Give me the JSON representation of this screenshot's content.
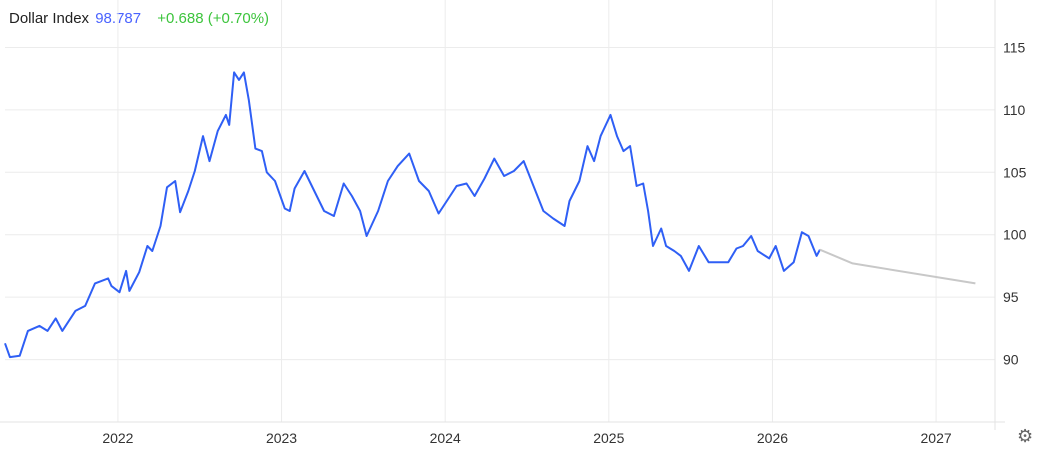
{
  "header": {
    "name": "Dollar Index",
    "price": "98.787",
    "change": "+0.688 (+0.70%)"
  },
  "colors": {
    "line": "#2f5ff5",
    "forecast": "#c8c8c8",
    "price": "#4a63ff",
    "change": "#3cc43c",
    "grid": "#ececec"
  },
  "settings_icon": "gear-icon",
  "chart_data": {
    "type": "line",
    "title": "Dollar Index",
    "xlim": [
      2021.31,
      2027.36
    ],
    "ylim": [
      85,
      118.8
    ],
    "grid": true,
    "y_axis_side": "right",
    "x_ticks": [
      "2022",
      "2023",
      "2024",
      "2025",
      "2026",
      "2027"
    ],
    "y_ticks": [
      "90",
      "95",
      "100",
      "105",
      "110",
      "115"
    ],
    "series": [
      {
        "kind": "actual",
        "points": [
          [
            2021.31,
            91.3
          ],
          [
            2021.34,
            90.2
          ],
          [
            2021.4,
            90.3
          ],
          [
            2021.45,
            92.3
          ],
          [
            2021.52,
            92.7
          ],
          [
            2021.57,
            92.3
          ],
          [
            2021.62,
            93.3
          ],
          [
            2021.66,
            92.3
          ],
          [
            2021.74,
            93.9
          ],
          [
            2021.8,
            94.3
          ],
          [
            2021.86,
            96.1
          ],
          [
            2021.94,
            96.5
          ],
          [
            2021.96,
            95.9
          ],
          [
            2022.01,
            95.4
          ],
          [
            2022.05,
            97.1
          ],
          [
            2022.07,
            95.5
          ],
          [
            2022.13,
            97.0
          ],
          [
            2022.18,
            99.1
          ],
          [
            2022.21,
            98.7
          ],
          [
            2022.26,
            100.7
          ],
          [
            2022.3,
            103.8
          ],
          [
            2022.35,
            104.3
          ],
          [
            2022.38,
            101.8
          ],
          [
            2022.43,
            103.5
          ],
          [
            2022.47,
            105.1
          ],
          [
            2022.52,
            107.9
          ],
          [
            2022.56,
            105.9
          ],
          [
            2022.61,
            108.3
          ],
          [
            2022.66,
            109.6
          ],
          [
            2022.68,
            108.8
          ],
          [
            2022.71,
            113.0
          ],
          [
            2022.74,
            112.4
          ],
          [
            2022.77,
            113.0
          ],
          [
            2022.8,
            110.8
          ],
          [
            2022.84,
            106.9
          ],
          [
            2022.88,
            106.7
          ],
          [
            2022.91,
            105.0
          ],
          [
            2022.96,
            104.3
          ],
          [
            2023.02,
            102.1
          ],
          [
            2023.05,
            101.9
          ],
          [
            2023.08,
            103.7
          ],
          [
            2023.14,
            105.1
          ],
          [
            2023.2,
            103.5
          ],
          [
            2023.26,
            101.9
          ],
          [
            2023.32,
            101.5
          ],
          [
            2023.38,
            104.1
          ],
          [
            2023.43,
            103.1
          ],
          [
            2023.48,
            101.9
          ],
          [
            2023.52,
            99.9
          ],
          [
            2023.59,
            101.9
          ],
          [
            2023.65,
            104.3
          ],
          [
            2023.71,
            105.5
          ],
          [
            2023.78,
            106.5
          ],
          [
            2023.84,
            104.3
          ],
          [
            2023.9,
            103.5
          ],
          [
            2023.96,
            101.7
          ],
          [
            2024.01,
            102.7
          ],
          [
            2024.07,
            103.9
          ],
          [
            2024.13,
            104.1
          ],
          [
            2024.18,
            103.1
          ],
          [
            2024.24,
            104.5
          ],
          [
            2024.3,
            106.1
          ],
          [
            2024.36,
            104.7
          ],
          [
            2024.42,
            105.1
          ],
          [
            2024.48,
            105.9
          ],
          [
            2024.54,
            103.9
          ],
          [
            2024.6,
            101.9
          ],
          [
            2024.66,
            101.3
          ],
          [
            2024.73,
            100.7
          ],
          [
            2024.76,
            102.7
          ],
          [
            2024.82,
            104.3
          ],
          [
            2024.87,
            107.1
          ],
          [
            2024.91,
            105.9
          ],
          [
            2024.95,
            107.9
          ],
          [
            2025.01,
            109.6
          ],
          [
            2025.05,
            107.9
          ],
          [
            2025.09,
            106.7
          ],
          [
            2025.13,
            107.1
          ],
          [
            2025.17,
            103.9
          ],
          [
            2025.21,
            104.1
          ],
          [
            2025.24,
            101.9
          ],
          [
            2025.27,
            99.1
          ],
          [
            2025.32,
            100.5
          ],
          [
            2025.35,
            99.1
          ],
          [
            2025.4,
            98.7
          ],
          [
            2025.44,
            98.3
          ],
          [
            2025.49,
            97.1
          ],
          [
            2025.55,
            99.1
          ],
          [
            2025.61,
            97.8
          ],
          [
            2025.67,
            97.8
          ],
          [
            2025.73,
            97.8
          ],
          [
            2025.78,
            98.9
          ],
          [
            2025.82,
            99.1
          ],
          [
            2025.87,
            99.9
          ],
          [
            2025.91,
            98.7
          ],
          [
            2025.98,
            98.1
          ],
          [
            2026.02,
            99.1
          ],
          [
            2026.07,
            97.1
          ],
          [
            2026.13,
            97.8
          ],
          [
            2026.18,
            100.2
          ],
          [
            2026.22,
            99.9
          ],
          [
            2026.27,
            98.3
          ],
          [
            2026.29,
            98.8
          ]
        ]
      },
      {
        "kind": "forecast",
        "points": [
          [
            2026.29,
            98.8
          ],
          [
            2026.49,
            97.7
          ],
          [
            2027.24,
            96.1
          ]
        ]
      }
    ]
  }
}
